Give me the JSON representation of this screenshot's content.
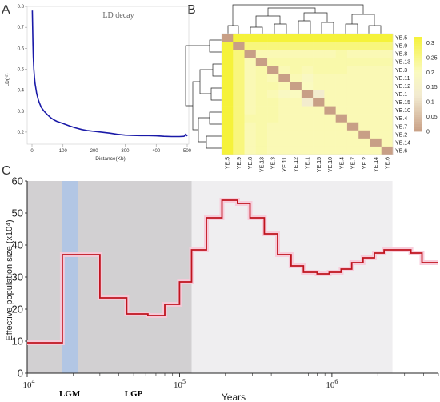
{
  "panels": {
    "a": {
      "letter": "A"
    },
    "b": {
      "letter": "B"
    },
    "c": {
      "letter": "C"
    }
  },
  "chart_data": [
    {
      "id": "ld-decay",
      "type": "line",
      "title": "LD decay",
      "xlabel": "Distance(Kb)",
      "ylabel": "LD(r²)",
      "xlim": [
        0,
        500
      ],
      "ylim": [
        0.15,
        0.8
      ],
      "xticks": [
        0,
        100,
        200,
        300,
        400,
        500
      ],
      "yticks": [
        0.2,
        0.3,
        0.4,
        0.5,
        0.6,
        0.7,
        0.8
      ],
      "line_color": "#1a1aa8",
      "x": [
        1,
        2,
        3,
        4,
        6,
        8,
        10,
        15,
        20,
        25,
        30,
        40,
        50,
        60,
        70,
        80,
        90,
        100,
        120,
        140,
        160,
        180,
        200,
        225,
        250,
        275,
        300,
        325,
        350,
        375,
        400,
        425,
        450,
        475,
        490,
        495,
        500
      ],
      "y": [
        0.78,
        0.7,
        0.62,
        0.56,
        0.5,
        0.46,
        0.43,
        0.385,
        0.355,
        0.335,
        0.318,
        0.298,
        0.282,
        0.27,
        0.26,
        0.252,
        0.245,
        0.239,
        0.229,
        0.221,
        0.214,
        0.208,
        0.203,
        0.198,
        0.194,
        0.19,
        0.187,
        0.185,
        0.183,
        0.182,
        0.181,
        0.18,
        0.18,
        0.18,
        0.18,
        0.19,
        0.181
      ]
    },
    {
      "id": "ld-heatmap",
      "type": "heatmap",
      "samples": [
        "YE.5",
        "YE.9",
        "YE.8",
        "YE.13",
        "YE.3",
        "YE.11",
        "YE.12",
        "YE.1",
        "YE.15",
        "YE.10",
        "YE.4",
        "YE.7",
        "YE.2",
        "YE.14",
        "YE.6"
      ],
      "legend_ticks": [
        0.3,
        0.25,
        0.2,
        0.15,
        0.1,
        0.05,
        0
      ],
      "value_range": [
        0,
        0.32
      ],
      "colors": {
        "high": "#f5f23a",
        "mid": "#fafac0",
        "low_mid": "#f2ead0",
        "low": "#c89f86"
      },
      "values": [
        [
          0.0,
          0.32,
          0.32,
          0.32,
          0.32,
          0.32,
          0.32,
          0.32,
          0.32,
          0.32,
          0.32,
          0.32,
          0.32,
          0.32,
          0.32
        ],
        [
          0.32,
          0.0,
          0.26,
          0.26,
          0.26,
          0.26,
          0.26,
          0.26,
          0.26,
          0.26,
          0.26,
          0.26,
          0.26,
          0.26,
          0.26
        ],
        [
          0.32,
          0.26,
          0.0,
          0.21,
          0.21,
          0.21,
          0.21,
          0.21,
          0.21,
          0.21,
          0.22,
          0.21,
          0.21,
          0.21,
          0.21
        ],
        [
          0.32,
          0.26,
          0.21,
          0.0,
          0.22,
          0.22,
          0.22,
          0.22,
          0.22,
          0.22,
          0.22,
          0.22,
          0.22,
          0.22,
          0.22
        ],
        [
          0.32,
          0.26,
          0.21,
          0.22,
          0.0,
          0.21,
          0.22,
          0.21,
          0.22,
          0.22,
          0.22,
          0.21,
          0.21,
          0.21,
          0.21
        ],
        [
          0.32,
          0.26,
          0.21,
          0.22,
          0.21,
          0.0,
          0.21,
          0.19,
          0.21,
          0.21,
          0.21,
          0.21,
          0.21,
          0.21,
          0.21
        ],
        [
          0.32,
          0.26,
          0.21,
          0.22,
          0.22,
          0.21,
          0.0,
          0.2,
          0.21,
          0.21,
          0.21,
          0.21,
          0.21,
          0.21,
          0.21
        ],
        [
          0.32,
          0.26,
          0.21,
          0.22,
          0.21,
          0.19,
          0.2,
          0.0,
          0.13,
          0.21,
          0.21,
          0.21,
          0.21,
          0.21,
          0.21
        ],
        [
          0.32,
          0.26,
          0.21,
          0.22,
          0.22,
          0.21,
          0.21,
          0.13,
          0.0,
          0.21,
          0.21,
          0.21,
          0.21,
          0.21,
          0.21
        ],
        [
          0.32,
          0.26,
          0.21,
          0.22,
          0.22,
          0.21,
          0.21,
          0.21,
          0.21,
          0.0,
          0.21,
          0.21,
          0.21,
          0.21,
          0.21
        ],
        [
          0.32,
          0.26,
          0.22,
          0.22,
          0.22,
          0.21,
          0.21,
          0.21,
          0.21,
          0.21,
          0.0,
          0.21,
          0.21,
          0.21,
          0.21
        ],
        [
          0.32,
          0.26,
          0.21,
          0.22,
          0.21,
          0.21,
          0.21,
          0.21,
          0.21,
          0.21,
          0.21,
          0.0,
          0.21,
          0.21,
          0.21
        ],
        [
          0.32,
          0.26,
          0.21,
          0.22,
          0.21,
          0.21,
          0.21,
          0.21,
          0.21,
          0.21,
          0.21,
          0.21,
          0.0,
          0.21,
          0.21
        ],
        [
          0.32,
          0.26,
          0.21,
          0.22,
          0.21,
          0.21,
          0.21,
          0.21,
          0.21,
          0.21,
          0.21,
          0.21,
          0.21,
          0.0,
          0.21
        ],
        [
          0.32,
          0.26,
          0.21,
          0.22,
          0.21,
          0.21,
          0.21,
          0.21,
          0.21,
          0.21,
          0.21,
          0.21,
          0.21,
          0.21,
          0.0
        ]
      ]
    },
    {
      "id": "psmc",
      "type": "line",
      "xlabel": "Years",
      "ylabel": "Effective population size (x10⁴)",
      "x_scale": "log",
      "xlim": [
        10000,
        5000000
      ],
      "ylim": [
        0,
        60
      ],
      "yticks": [
        0,
        10,
        20,
        30,
        40,
        50,
        60
      ],
      "xtick_labels": [
        {
          "value": 10000,
          "base": "10",
          "exp": "4"
        },
        {
          "value": 100000,
          "base": "10",
          "exp": "5"
        },
        {
          "value": 1000000,
          "base": "10",
          "exp": "6"
        }
      ],
      "line_color": "#c0141e",
      "halo_color": "#f7c9d8",
      "shaded_regions": [
        {
          "from": 10000,
          "to": 120000,
          "color": "#d2d0d2"
        },
        {
          "from": 120000,
          "to": 2500000,
          "color": "#efeef0"
        },
        {
          "from": 17000,
          "to": 21500,
          "color": "#b2c6e4"
        }
      ],
      "annotations": [
        {
          "text": "LGM",
          "x": 19000
        },
        {
          "text": "LGP",
          "x": 50000
        }
      ],
      "steps": [
        [
          10000,
          9.5
        ],
        [
          17000,
          37
        ],
        [
          30000,
          23.5
        ],
        [
          45000,
          18.5
        ],
        [
          62000,
          18.0
        ],
        [
          80000,
          21.5
        ],
        [
          100000,
          28.5
        ],
        [
          120000,
          38.5
        ],
        [
          150000,
          48.5
        ],
        [
          190000,
          54
        ],
        [
          240000,
          53
        ],
        [
          290000,
          48.5
        ],
        [
          360000,
          43.5
        ],
        [
          440000,
          37
        ],
        [
          540000,
          33.5
        ],
        [
          650000,
          31.5
        ],
        [
          800000,
          31
        ],
        [
          960000,
          31.5
        ],
        [
          1150000,
          32.5
        ],
        [
          1350000,
          34.5
        ],
        [
          1600000,
          36
        ],
        [
          1900000,
          37.5
        ],
        [
          2200000,
          38.5
        ],
        [
          2700000,
          38.5
        ],
        [
          3300000,
          37.5
        ],
        [
          3900000,
          34.5
        ],
        [
          5000000,
          34.5
        ]
      ]
    }
  ]
}
